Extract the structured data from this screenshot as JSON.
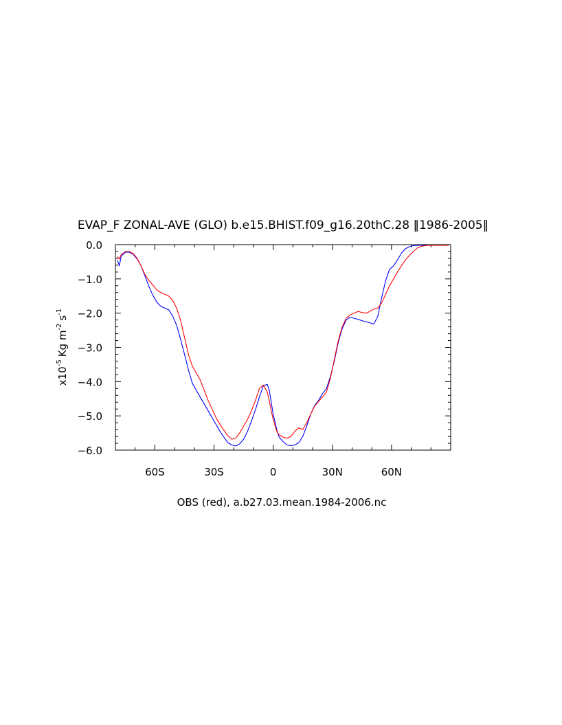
{
  "chart_data": {
    "type": "line",
    "title": "EVAP_F ZONAL-AVE (GLO) b.e15.BHIST.f09_g16.20thC.28 ‖1986-2005‖",
    "ylabel_prefix": "x10",
    "ylabel_exp": "-5",
    "ylabel_unit_kg": "Kg m",
    "ylabel_exp2": "-2",
    "ylabel_unit_s": "s",
    "ylabel_exp3": "-1",
    "xlabel": "OBS (red), a.b27.03.mean.1984-2006.nc",
    "xlim": [
      -80,
      90
    ],
    "ylim": [
      -6.0,
      0.0
    ],
    "xticks": [
      {
        "value": -60,
        "label": "60S"
      },
      {
        "value": -30,
        "label": "30S"
      },
      {
        "value": 0,
        "label": "0"
      },
      {
        "value": 30,
        "label": "30N"
      },
      {
        "value": 60,
        "label": "60N"
      }
    ],
    "yticks": [
      {
        "value": 0.0,
        "label": "0.0"
      },
      {
        "value": -1.0,
        "label": "−1.0"
      },
      {
        "value": -2.0,
        "label": "−2.0"
      },
      {
        "value": -3.0,
        "label": "−3.0"
      },
      {
        "value": -4.0,
        "label": "−4.0"
      },
      {
        "value": -5.0,
        "label": "−5.0"
      },
      {
        "value": -6.0,
        "label": "−6.0"
      }
    ],
    "series": [
      {
        "color": "#0000ff",
        "x": [
          -79,
          -78,
          -77,
          -76,
          -75,
          -73,
          -71,
          -69,
          -67,
          -65,
          -63,
          -61,
          -59,
          -57,
          -55,
          -53,
          -51,
          -49,
          -47,
          -45,
          -43,
          -41,
          -39,
          -37,
          -35,
          -33,
          -31,
          -29,
          -27,
          -25,
          -23,
          -21,
          -19,
          -17,
          -15,
          -13,
          -11,
          -9,
          -7,
          -5,
          -3,
          -2,
          -1,
          0,
          1,
          2,
          3,
          5,
          7,
          9,
          11,
          13,
          15,
          17,
          19,
          21,
          23,
          25,
          27,
          29,
          31,
          33,
          35,
          37,
          39,
          41,
          43,
          45,
          47,
          49,
          51,
          53,
          55,
          57,
          59,
          61,
          63,
          65,
          67,
          69,
          71,
          73,
          75,
          77,
          79,
          81,
          83,
          85,
          87,
          89
        ],
        "y": [
          -0.45,
          -0.62,
          -0.32,
          -0.28,
          -0.22,
          -0.22,
          -0.28,
          -0.42,
          -0.62,
          -0.92,
          -1.22,
          -1.48,
          -1.68,
          -1.8,
          -1.85,
          -1.9,
          -2.08,
          -2.35,
          -2.75,
          -3.2,
          -3.65,
          -4.05,
          -4.25,
          -4.45,
          -4.65,
          -4.85,
          -5.05,
          -5.25,
          -5.45,
          -5.62,
          -5.78,
          -5.85,
          -5.88,
          -5.82,
          -5.68,
          -5.45,
          -5.15,
          -4.82,
          -4.45,
          -4.12,
          -4.08,
          -4.25,
          -4.6,
          -4.95,
          -5.2,
          -5.45,
          -5.62,
          -5.75,
          -5.85,
          -5.87,
          -5.85,
          -5.78,
          -5.6,
          -5.3,
          -4.95,
          -4.7,
          -4.55,
          -4.35,
          -4.2,
          -3.85,
          -3.4,
          -2.85,
          -2.45,
          -2.2,
          -2.12,
          -2.15,
          -2.18,
          -2.22,
          -2.25,
          -2.28,
          -2.32,
          -2.1,
          -1.55,
          -1.05,
          -0.72,
          -0.62,
          -0.45,
          -0.25,
          -0.12,
          -0.06,
          -0.03,
          -0.02,
          -0.02,
          -0.02,
          -0.02,
          -0.02,
          -0.02,
          -0.02,
          -0.02,
          -0.02
        ]
      },
      {
        "color": "#ff0000",
        "x": [
          -79,
          -78,
          -77,
          -76,
          -75,
          -73,
          -71,
          -69,
          -67,
          -65,
          -63,
          -61,
          -59,
          -57,
          -55,
          -53,
          -51,
          -49,
          -47,
          -45,
          -43,
          -41,
          -39,
          -37,
          -35,
          -33,
          -31,
          -29,
          -27,
          -25,
          -23,
          -21,
          -19,
          -17,
          -15,
          -13,
          -11,
          -9,
          -7,
          -5,
          -3,
          -2,
          -1,
          0,
          1,
          2,
          3,
          5,
          7,
          9,
          11,
          13,
          15,
          17,
          19,
          21,
          23,
          25,
          27,
          29,
          31,
          33,
          35,
          37,
          39,
          41,
          43,
          45,
          47,
          49,
          51,
          53,
          55,
          57,
          59,
          61,
          63,
          65,
          67,
          69,
          71,
          73,
          75,
          77,
          79,
          81,
          83,
          85,
          87,
          89
        ],
        "y": [
          -0.35,
          -0.42,
          -0.28,
          -0.25,
          -0.2,
          -0.2,
          -0.26,
          -0.4,
          -0.62,
          -0.88,
          -1.05,
          -1.18,
          -1.32,
          -1.4,
          -1.45,
          -1.5,
          -1.62,
          -1.85,
          -2.2,
          -2.7,
          -3.2,
          -3.55,
          -3.75,
          -3.95,
          -4.25,
          -4.55,
          -4.8,
          -5.05,
          -5.25,
          -5.42,
          -5.58,
          -5.68,
          -5.65,
          -5.5,
          -5.3,
          -5.1,
          -4.85,
          -4.55,
          -4.2,
          -4.1,
          -4.3,
          -4.55,
          -4.85,
          -5.1,
          -5.3,
          -5.48,
          -5.55,
          -5.62,
          -5.65,
          -5.6,
          -5.45,
          -5.35,
          -5.4,
          -5.2,
          -4.95,
          -4.72,
          -4.58,
          -4.45,
          -4.3,
          -3.9,
          -3.35,
          -2.8,
          -2.4,
          -2.15,
          -2.05,
          -2.0,
          -1.95,
          -1.98,
          -2.0,
          -1.95,
          -1.88,
          -1.85,
          -1.7,
          -1.45,
          -1.2,
          -1.0,
          -0.8,
          -0.62,
          -0.45,
          -0.32,
          -0.2,
          -0.1,
          -0.05,
          -0.03,
          -0.02,
          -0.02,
          -0.02,
          -0.02,
          -0.02,
          -0.02
        ]
      }
    ],
    "grid": false,
    "legend": "none"
  }
}
